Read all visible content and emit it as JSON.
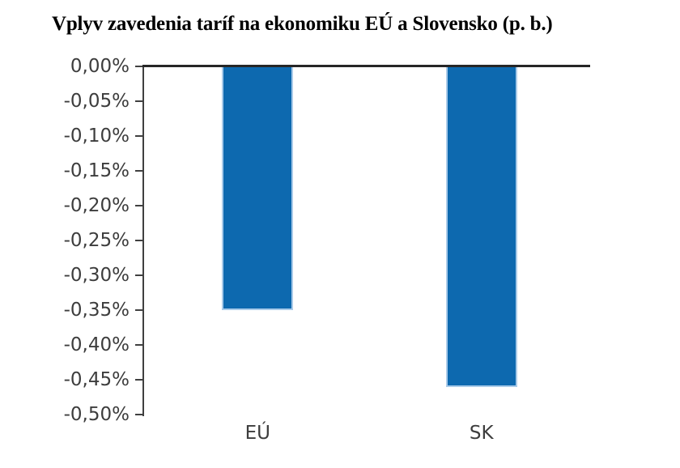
{
  "chart_data": {
    "type": "bar",
    "title": "Vplyv zavedenia taríf na ekonomiku EÚ a Slovensko (p. b.)",
    "categories": [
      "EÚ",
      "SK"
    ],
    "values": [
      -0.35,
      -0.46
    ],
    "value_unit": "percentage points (p. b.)",
    "xlabel": "",
    "ylabel": "",
    "ylim": [
      -0.5,
      0
    ],
    "ytick_step": 0.05,
    "ytick_labels": [
      "0,00%",
      "-0,05%",
      "-0,10%",
      "-0,15%",
      "-0,20%",
      "-0,25%",
      "-0,30%",
      "-0,35%",
      "-0,40%",
      "-0,45%",
      "-0,50%"
    ],
    "grid": false,
    "legend": false,
    "colors": {
      "bar_fill": "#0d69af",
      "bar_border": "#aacbe9",
      "axis_line": "#404040",
      "zero_line": "#262626",
      "tick_label": "#3d3d3d",
      "category_label": "#3d3d3d",
      "title": "#000000",
      "background": "#ffffff"
    }
  }
}
